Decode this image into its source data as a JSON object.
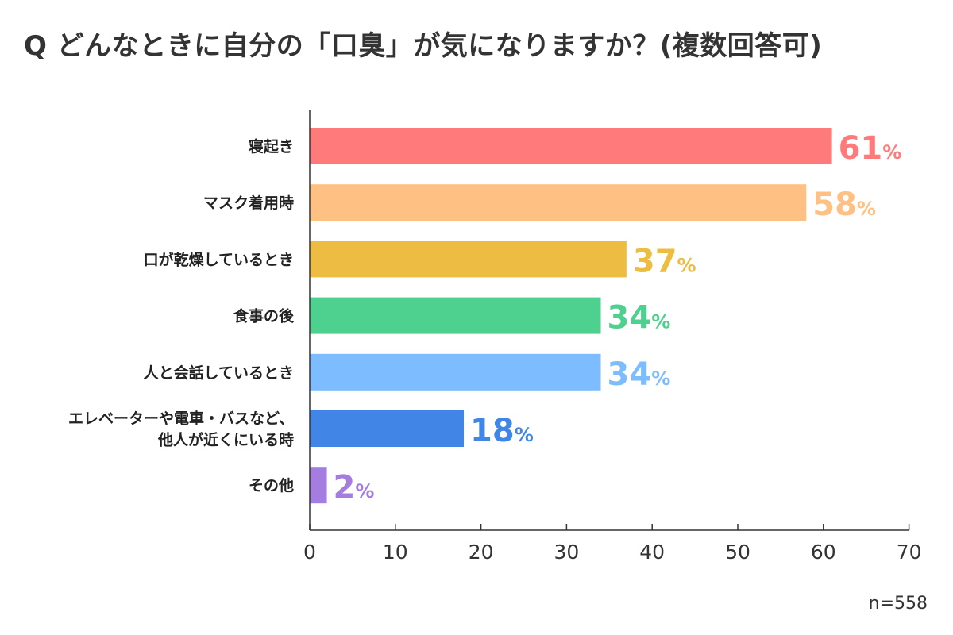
{
  "chart_data": {
    "type": "bar",
    "orientation": "horizontal",
    "title": "Q どんなときに自分の「口臭」が気になりますか？(複数回答可)",
    "categories": [
      "寝起き",
      "マスク着用時",
      "口が乾燥しているとき",
      "食事の後",
      "人と会話しているとき",
      "エレベーターや電車・バスなど、\n他人が近くにいる時",
      "その他"
    ],
    "values": [
      61,
      58,
      37,
      34,
      34,
      18,
      2
    ],
    "value_suffix": "%",
    "colors": [
      "#FF7B7B",
      "#FFC083",
      "#EDBC42",
      "#4ED08E",
      "#7DBDFF",
      "#4185E6",
      "#A57DE0"
    ],
    "xlim": [
      0,
      70
    ],
    "xticks": [
      0,
      10,
      20,
      30,
      40,
      50,
      60,
      70
    ],
    "grid": false,
    "note": "n=558"
  }
}
